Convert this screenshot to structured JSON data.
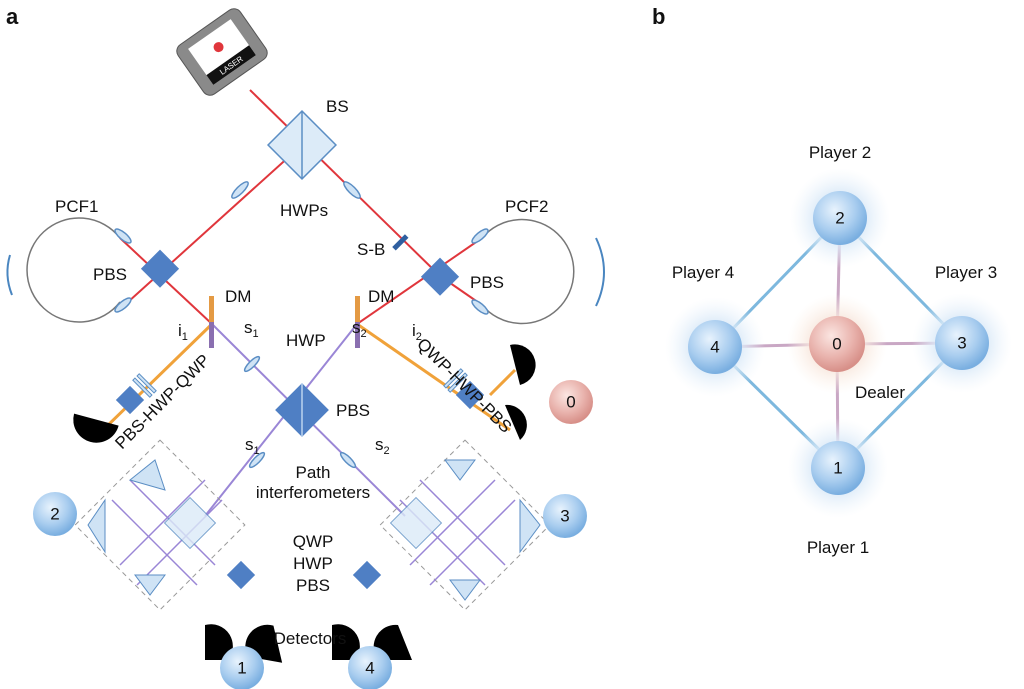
{
  "panels": {
    "a": "a",
    "b": "b"
  },
  "setup": {
    "laser": "LASER",
    "bs": "BS",
    "hwps": "HWPs",
    "pcf1": "PCF1",
    "pcf2": "PCF2",
    "sb": "S-B",
    "pbs_left": "PBS",
    "pbs_right": "PBS",
    "dm_left": "DM",
    "dm_right": "DM",
    "i1": "i",
    "i1_sub": "1",
    "i2": "i",
    "i2_sub": "2",
    "s1_top": "s",
    "s1_top_sub": "1",
    "s2_top": "s",
    "s2_top_sub": "2",
    "hwp": "HWP",
    "pbs_center": "PBS",
    "s1_bottom": "s",
    "s1_bottom_sub": "1",
    "s2_bottom": "s",
    "s2_bottom_sub": "2",
    "path": "Path",
    "interferometers": "interferometers",
    "left_chain": "PBS-HWP-QWP",
    "right_chain": "QWP-HWP-PBS",
    "qwp": "QWP",
    "hwp2": "HWP",
    "pbs2": "PBS",
    "detectors": "Detectors",
    "nodes": {
      "n0": "0",
      "n1": "1",
      "n2": "2",
      "n3": "3",
      "n4": "4"
    }
  },
  "network": {
    "nodes": {
      "n0": "0",
      "n1": "1",
      "n2": "2",
      "n3": "3",
      "n4": "4"
    },
    "player1": "Player 1",
    "player2": "Player 2",
    "player3": "Player 3",
    "player4": "Player 4",
    "dealer": "Dealer"
  },
  "colors": {
    "pump": "#e0363c",
    "signal": "#9a86d6",
    "idler": "#f0a23a",
    "player_node": "#a9cdef",
    "dealer_node": "#e9b3ad",
    "player_link": "#7db8de",
    "dealer_link": "#c9a7c4"
  }
}
